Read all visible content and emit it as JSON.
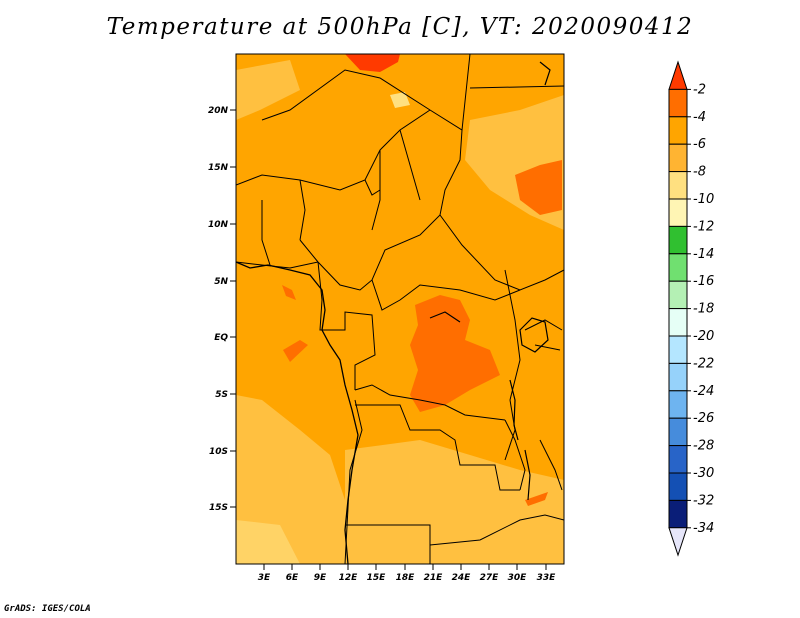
{
  "title": "Temperature at 500hPa [C], VT: 2020090412",
  "credit": "GrADS: IGES/COLA",
  "map": {
    "lat_labels": [
      "20N",
      "15N",
      "10N",
      "5N",
      "EQ",
      "5S",
      "10S",
      "15S"
    ],
    "lon_labels": [
      "3E",
      "6E",
      "9E",
      "12E",
      "15E",
      "18E",
      "21E",
      "24E",
      "27E",
      "30E",
      "33E"
    ],
    "base_fill": "#ffa500",
    "warm_fill": "#ff6e00",
    "cool_fill": "#ffc040",
    "coolest_fill": "#ffe080",
    "hot_fill": "#ff3a00"
  },
  "colorbar": {
    "labels": [
      "-2",
      "-4",
      "-6",
      "-8",
      "-10",
      "-12",
      "-14",
      "-16",
      "-18",
      "-20",
      "-22",
      "-24",
      "-26",
      "-28",
      "-30",
      "-32",
      "-34"
    ],
    "colors": [
      "#ff3a00",
      "#ff6e00",
      "#ffa500",
      "#ffb432",
      "#ffe080",
      "#fff5b4",
      "#30c030",
      "#70e070",
      "#b4f0b4",
      "#e6fff6",
      "#b4e6ff",
      "#96d2fa",
      "#6eb4f0",
      "#468cdc",
      "#2864c8",
      "#1450b4",
      "#0a1e78",
      "#e6e6fa"
    ]
  }
}
